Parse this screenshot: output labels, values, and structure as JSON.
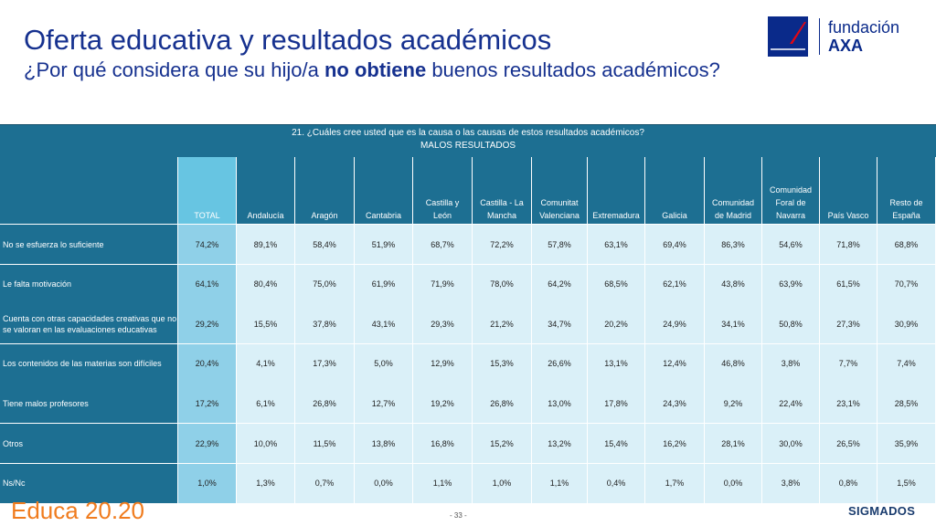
{
  "header": {
    "title": "Oferta educativa y resultados académicos",
    "subtitle_pre": "¿Por qué considera que su hijo/a ",
    "subtitle_bold": "no obtiene",
    "subtitle_post": " buenos resultados académicos?"
  },
  "logo": {
    "brand": "AXA",
    "line1": "fundación",
    "line2": "AXA",
    "colors": {
      "box": "#0a2a8a",
      "slash": "#e30613"
    }
  },
  "table": {
    "question": "21. ¿Cuáles cree usted que es la causa o las causas de estos resultados académicos?",
    "subheader": "MALOS RESULTADOS",
    "columns": [
      [
        "TOTAL"
      ],
      [
        "Andalucía"
      ],
      [
        "Aragón"
      ],
      [
        "Cantabria"
      ],
      [
        "Castilla y",
        "León"
      ],
      [
        "Castilla - La",
        "Mancha"
      ],
      [
        "Comunitat",
        "Valenciana"
      ],
      [
        "Extremadura"
      ],
      [
        "Galicia"
      ],
      [
        "Comunidad",
        "de Madrid"
      ],
      [
        "Comunidad",
        "Foral de",
        "Navarra"
      ],
      [
        "País Vasco"
      ],
      [
        "Resto de",
        "España"
      ]
    ],
    "rows": [
      {
        "label": "No se esfuerza lo suficiente",
        "values": [
          "74,2%",
          "89,1%",
          "58,4%",
          "51,9%",
          "68,7%",
          "72,2%",
          "57,8%",
          "63,1%",
          "69,4%",
          "86,3%",
          "54,6%",
          "71,8%",
          "68,8%"
        ]
      },
      {
        "label": "Le falta motivación",
        "values": [
          "64,1%",
          "80,4%",
          "75,0%",
          "61,9%",
          "71,9%",
          "78,0%",
          "64,2%",
          "68,5%",
          "62,1%",
          "43,8%",
          "63,9%",
          "61,5%",
          "70,7%"
        ]
      },
      {
        "label": "Cuenta con otras capacidades creativas que no se valoran en las evaluaciones educativas",
        "values": [
          "29,2%",
          "15,5%",
          "37,8%",
          "43,1%",
          "29,3%",
          "21,2%",
          "34,7%",
          "20,2%",
          "24,9%",
          "34,1%",
          "50,8%",
          "27,3%",
          "30,9%"
        ]
      },
      {
        "label": "Los contenidos de las materias son difíciles",
        "values": [
          "20,4%",
          "4,1%",
          "17,3%",
          "5,0%",
          "12,9%",
          "15,3%",
          "26,6%",
          "13,1%",
          "12,4%",
          "46,8%",
          "3,8%",
          "7,7%",
          "7,4%"
        ]
      },
      {
        "label": "Tiene malos profesores",
        "values": [
          "17,2%",
          "6,1%",
          "26,8%",
          "12,7%",
          "19,2%",
          "26,8%",
          "13,0%",
          "17,8%",
          "24,3%",
          "9,2%",
          "22,4%",
          "23,1%",
          "28,5%"
        ]
      },
      {
        "label": "Otros",
        "values": [
          "22,9%",
          "10,0%",
          "11,5%",
          "13,8%",
          "16,8%",
          "15,2%",
          "13,2%",
          "15,4%",
          "16,2%",
          "28,1%",
          "30,0%",
          "26,5%",
          "35,9%"
        ]
      },
      {
        "label": "Ns/Nc",
        "values": [
          "1,0%",
          "1,3%",
          "0,7%",
          "0,0%",
          "1,1%",
          "1,0%",
          "1,1%",
          "0,4%",
          "1,7%",
          "0,0%",
          "3,8%",
          "0,8%",
          "1,5%"
        ]
      }
    ],
    "colors": {
      "header": "#1d6f92",
      "total_header": "#67c5e2",
      "total_cell": "#8fd0e8",
      "cell": "#daf0f8"
    }
  },
  "footer": {
    "educa": "Educa 20.20",
    "page": "- 33 -",
    "sigmados": "SIGMADOS"
  }
}
